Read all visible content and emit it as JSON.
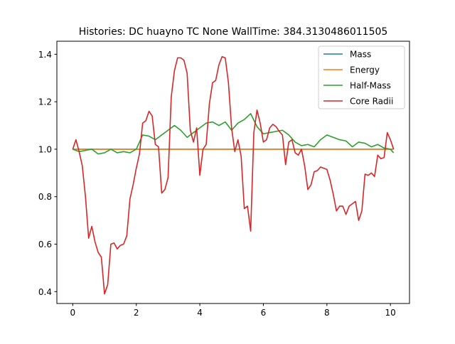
{
  "chart_data": {
    "type": "line",
    "title": "Histories: DC huayno TC None WallTime: 384.3130486011505",
    "xlabel": "",
    "ylabel": "",
    "xlim": [
      -0.5,
      10.6
    ],
    "ylim": [
      0.35,
      1.455
    ],
    "xticks": [
      0,
      2,
      4,
      6,
      8,
      10
    ],
    "yticks": [
      0.4,
      0.6,
      0.8,
      1.0,
      1.2,
      1.4
    ],
    "xtick_labels": [
      "0",
      "2",
      "4",
      "6",
      "8",
      "10"
    ],
    "ytick_labels": [
      "0.4",
      "0.6",
      "0.8",
      "1.0",
      "1.2",
      "1.4"
    ],
    "grid": false,
    "legend_position": "top-right",
    "series": [
      {
        "name": "Mass",
        "color": "#1f77b4",
        "x": [
          0,
          10.1
        ],
        "y": [
          1.0,
          1.0
        ]
      },
      {
        "name": "Energy",
        "color": "#ff7f0e",
        "x": [
          0,
          10.1
        ],
        "y": [
          1.0,
          1.0
        ]
      },
      {
        "name": "Half-Mass",
        "color": "#2ca02c",
        "x": [
          0,
          0.2,
          0.4,
          0.6,
          0.8,
          1.0,
          1.2,
          1.4,
          1.6,
          1.8,
          2.0,
          2.2,
          2.4,
          2.6,
          2.8,
          3.0,
          3.2,
          3.4,
          3.6,
          3.8,
          4.0,
          4.2,
          4.4,
          4.6,
          4.8,
          5.0,
          5.2,
          5.4,
          5.6,
          5.8,
          6.0,
          6.2,
          6.4,
          6.6,
          6.8,
          7.0,
          7.2,
          7.4,
          7.6,
          7.8,
          8.0,
          8.2,
          8.4,
          8.6,
          8.8,
          9.0,
          9.2,
          9.4,
          9.6,
          9.8,
          10.0,
          10.1
        ],
        "y": [
          1.0,
          0.99,
          0.995,
          1.0,
          0.98,
          0.985,
          1.0,
          0.985,
          0.99,
          0.985,
          1.0,
          1.06,
          1.055,
          1.04,
          1.06,
          1.08,
          1.1,
          1.08,
          1.05,
          1.07,
          1.09,
          1.11,
          1.115,
          1.1,
          1.115,
          1.08,
          1.11,
          1.125,
          1.15,
          1.095,
          1.065,
          1.07,
          1.075,
          1.08,
          1.06,
          1.03,
          1.015,
          1.02,
          1.01,
          1.04,
          1.06,
          1.05,
          1.04,
          1.035,
          1.01,
          1.03,
          1.025,
          1.01,
          1.02,
          1.005,
          1.0,
          0.985
        ]
      },
      {
        "name": "Core Radii",
        "color": "#d62728",
        "x": [
          0,
          0.1,
          0.2,
          0.3,
          0.4,
          0.5,
          0.6,
          0.7,
          0.8,
          0.9,
          1.0,
          1.1,
          1.2,
          1.3,
          1.4,
          1.5,
          1.6,
          1.7,
          1.8,
          1.9,
          2.0,
          2.1,
          2.2,
          2.3,
          2.4,
          2.5,
          2.6,
          2.7,
          2.8,
          2.9,
          3.0,
          3.1,
          3.2,
          3.3,
          3.4,
          3.5,
          3.6,
          3.7,
          3.8,
          3.9,
          4.0,
          4.1,
          4.2,
          4.3,
          4.4,
          4.5,
          4.6,
          4.7,
          4.8,
          4.9,
          5.0,
          5.1,
          5.2,
          5.3,
          5.4,
          5.5,
          5.6,
          5.7,
          5.8,
          5.9,
          6.0,
          6.1,
          6.2,
          6.3,
          6.4,
          6.5,
          6.6,
          6.7,
          6.8,
          6.9,
          7.0,
          7.1,
          7.2,
          7.3,
          7.4,
          7.5,
          7.6,
          7.7,
          7.8,
          7.9,
          8.0,
          8.1,
          8.2,
          8.3,
          8.4,
          8.5,
          8.6,
          8.7,
          8.8,
          8.9,
          9.0,
          9.1,
          9.2,
          9.3,
          9.4,
          9.5,
          9.6,
          9.7,
          9.8,
          9.9,
          10.0,
          10.1
        ],
        "y": [
          1.0,
          1.04,
          0.99,
          0.93,
          0.8,
          0.625,
          0.675,
          0.61,
          0.565,
          0.545,
          0.39,
          0.43,
          0.6,
          0.605,
          0.58,
          0.595,
          0.6,
          0.635,
          0.79,
          0.85,
          0.92,
          0.98,
          1.11,
          1.12,
          1.16,
          1.14,
          1.02,
          1.01,
          0.815,
          0.83,
          0.88,
          1.22,
          1.33,
          1.385,
          1.385,
          1.375,
          1.32,
          1.08,
          1.03,
          1.09,
          0.89,
          1.0,
          1.02,
          1.19,
          1.28,
          1.29,
          1.355,
          1.39,
          1.385,
          1.28,
          1.09,
          0.99,
          1.04,
          0.97,
          0.75,
          0.76,
          0.655,
          1.07,
          1.165,
          1.11,
          1.03,
          1.04,
          1.09,
          1.105,
          1.095,
          1.075,
          1.06,
          0.935,
          1.03,
          1.04,
          0.985,
          0.975,
          1.0,
          0.93,
          0.83,
          0.85,
          0.905,
          0.91,
          0.925,
          0.92,
          0.915,
          0.87,
          0.81,
          0.74,
          0.76,
          0.76,
          0.725,
          0.76,
          0.77,
          0.78,
          0.7,
          0.74,
          0.895,
          0.89,
          0.9,
          0.885,
          0.975,
          0.96,
          0.965,
          1.07,
          1.04,
          1.0
        ]
      }
    ]
  }
}
